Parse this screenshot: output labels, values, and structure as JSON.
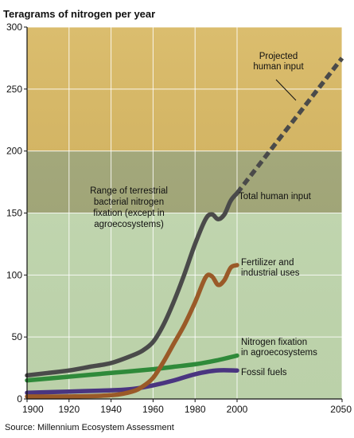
{
  "chart_data": {
    "type": "line",
    "title": "Teragrams of nitrogen per year",
    "source": "Source: Millennium Ecosystem Assessment",
    "xlim": [
      1900,
      2050
    ],
    "ylim": [
      0,
      300
    ],
    "x_ticks": [
      "1900",
      "1920",
      "1940",
      "1960",
      "1980",
      "2000",
      "2050"
    ],
    "y_ticks": [
      "0",
      "50",
      "100",
      "150",
      "200",
      "250",
      "300"
    ],
    "grid": true,
    "bands": [
      {
        "y0": 0,
        "y1": 150,
        "color": "#c5dcb2"
      },
      {
        "y0": 150,
        "y1": 200,
        "color": "#a3a877"
      },
      {
        "y0": 200,
        "y1": 300,
        "color": "#d7b65e"
      }
    ],
    "band_label": [
      "Range of terrestrial",
      "bacterial nitrogen",
      "fixation (except in",
      "agroecosystems)"
    ],
    "series": [
      {
        "name": "Total human input",
        "label_lines": [
          "Total human input"
        ],
        "color": "#4a4a4a",
        "x": [
          1900,
          1910,
          1920,
          1930,
          1940,
          1950,
          1955,
          1960,
          1965,
          1970,
          1975,
          1980,
          1985,
          1988,
          1991,
          1994,
          1997,
          2000
        ],
        "y": [
          19,
          21,
          23,
          26,
          29,
          35,
          39,
          46,
          60,
          79,
          101,
          125,
          145,
          149,
          145,
          149,
          160,
          166
        ]
      },
      {
        "name": "Projected human input",
        "label_lines": [
          "Projected",
          "human input"
        ],
        "color": "#4a4a4a",
        "dashed": true,
        "x": [
          2000,
          2050
        ],
        "y": [
          166,
          275
        ]
      },
      {
        "name": "Fertilizer and industrial uses",
        "label_lines": [
          "Fertilizer and",
          "industrial uses"
        ],
        "color": "#9a5a28",
        "x": [
          1900,
          1920,
          1940,
          1950,
          1955,
          1960,
          1965,
          1970,
          1975,
          1980,
          1985,
          1988,
          1991,
          1994,
          1997,
          2000
        ],
        "y": [
          2,
          2,
          3,
          6,
          10,
          17,
          30,
          45,
          60,
          78,
          98,
          99,
          92,
          96,
          106,
          108
        ]
      },
      {
        "name": "Nitrogen fixation in agroecosystems",
        "label_lines": [
          "Nitrogen fixation",
          "in agroecosystems"
        ],
        "color": "#2f8a3a",
        "x": [
          1900,
          1920,
          1940,
          1960,
          1970,
          1980,
          1990,
          2000
        ],
        "y": [
          15,
          18,
          21,
          24,
          26,
          28,
          31,
          35
        ]
      },
      {
        "name": "Fossil fuels",
        "label_lines": [
          "Fossil fuels"
        ],
        "color": "#4a3580",
        "x": [
          1900,
          1920,
          1940,
          1950,
          1960,
          1970,
          1980,
          1990,
          2000
        ],
        "y": [
          5,
          6,
          7,
          8,
          11,
          15,
          20,
          23,
          23
        ]
      }
    ]
  }
}
